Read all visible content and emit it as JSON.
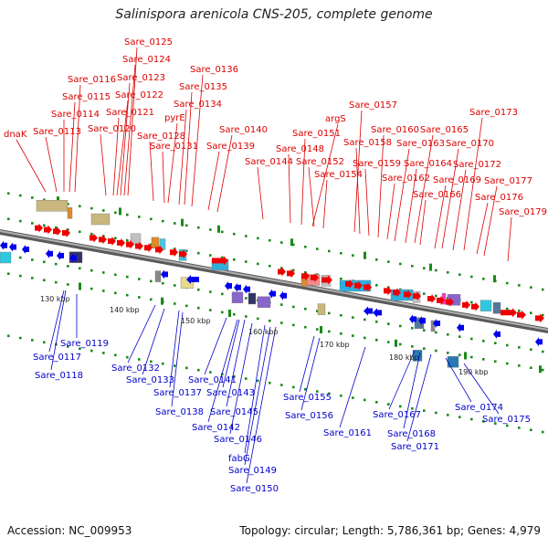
{
  "title": "Salinispora arenicola CNS-205, complete genome",
  "footer": {
    "accession": "Accession: NC_009953",
    "topology": "Topology: circular; Length: 5,786,361 bp; Genes: 4,979"
  },
  "colors": {
    "forward_gene": "#ee0000",
    "reverse_gene": "#0000ee",
    "forward_label": "#dd0000",
    "reverse_label": "#0000cc",
    "backbone": "#808080",
    "tick": "#1a8a1a"
  },
  "ticks": [
    "130 kbp",
    "140 kbp",
    "150 kbp",
    "160 kbp",
    "170 kbp",
    "180 kbp",
    "190 kbp"
  ],
  "forward_labels": [
    "dnaK",
    "Sare_0113",
    "Sare_0114",
    "Sare_0115",
    "Sare_0116",
    "Sare_0120",
    "Sare_0121",
    "Sare_0122",
    "Sare_0123",
    "Sare_0124",
    "Sare_0125",
    "Sare_0128",
    "Sare_0131",
    "pyrE",
    "Sare_0134",
    "Sare_0135",
    "Sare_0136",
    "Sare_0139",
    "Sare_0140",
    "Sare_0144",
    "Sare_0148",
    "Sare_0151",
    "argS",
    "Sare_0152",
    "Sare_0154",
    "Sare_0157",
    "Sare_0158",
    "Sare_0159",
    "Sare_0160",
    "Sare_0162",
    "Sare_0163",
    "Sare_0164",
    "Sare_0165",
    "Sare_0166",
    "Sare_0169",
    "Sare_0170",
    "Sare_0172",
    "Sare_0173",
    "Sare_0176",
    "Sare_0177",
    "Sare_0179"
  ],
  "reverse_labels": [
    "Sare_0117",
    "Sare_0118",
    "Sare_0119",
    "Sare_0132",
    "Sare_0133",
    "Sare_0137",
    "Sare_0138",
    "Sare_0141",
    "Sare_0142",
    "Sare_0143",
    "Sare_0145",
    "Sare_0146",
    "fabG",
    "Sare_0149",
    "Sare_0150",
    "Sare_0155",
    "Sare_0156",
    "Sare_0161",
    "Sare_0167",
    "Sare_0168",
    "Sare_0171",
    "Sare_0174",
    "Sare_0175"
  ]
}
